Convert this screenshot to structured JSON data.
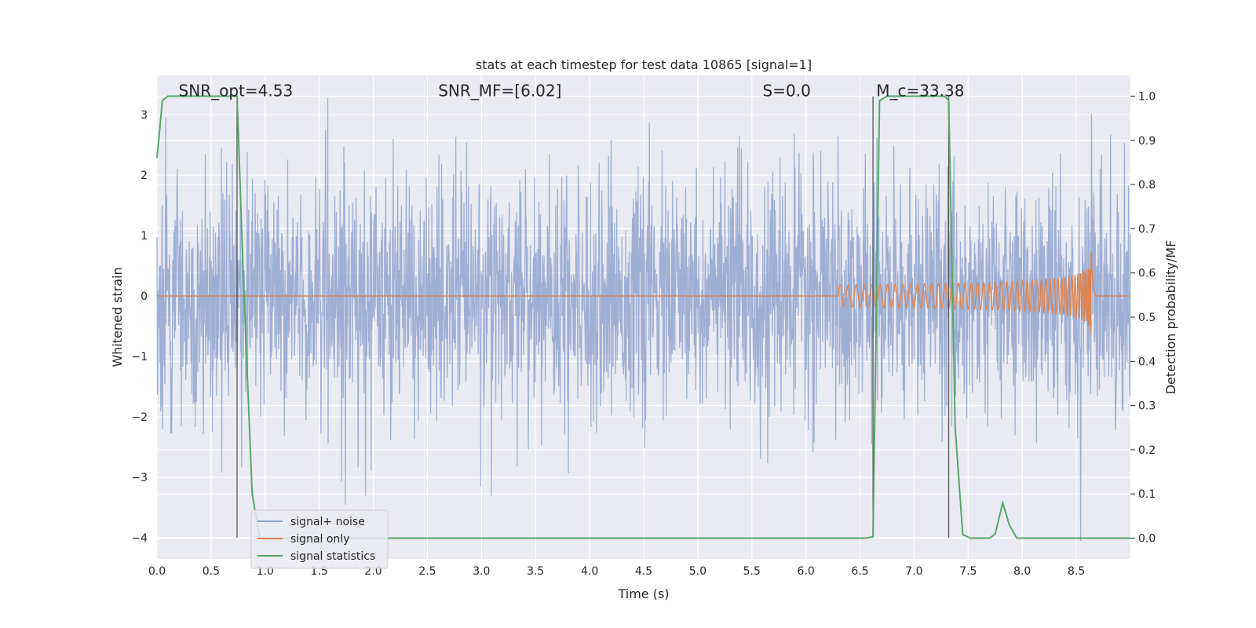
{
  "chart_data": {
    "type": "line",
    "title": "stats at each timestep for test data 10865 [signal=1]",
    "xlabel": "Time (s)",
    "ylabel": "Whitened strain",
    "y2label": "Detection probability/MF",
    "xlim": [
      0.0,
      9.0
    ],
    "ylim": [
      -4.35,
      3.65
    ],
    "y2lim": [
      -0.047,
      1.047
    ],
    "xticks": [
      "0.0",
      "0.5",
      "1.0",
      "1.5",
      "2.0",
      "2.5",
      "3.0",
      "3.5",
      "4.0",
      "4.5",
      "5.0",
      "5.5",
      "6.0",
      "6.5",
      "7.0",
      "7.5",
      "8.0",
      "8.5"
    ],
    "xtick_values": [
      0.0,
      0.5,
      1.0,
      1.5,
      2.0,
      2.5,
      3.0,
      3.5,
      4.0,
      4.5,
      5.0,
      5.5,
      6.0,
      6.5,
      7.0,
      7.5,
      8.0,
      8.5
    ],
    "yticks": [
      "−4",
      "−3",
      "−2",
      "−1",
      "0",
      "1",
      "2",
      "3"
    ],
    "ytick_values": [
      -4,
      -3,
      -2,
      -1,
      0,
      1,
      2,
      3
    ],
    "y2ticks": [
      "0.0",
      "0.1",
      "0.2",
      "0.3",
      "0.4",
      "0.5",
      "0.6",
      "0.7",
      "0.8",
      "0.9",
      "1.0"
    ],
    "y2tick_values": [
      0.0,
      0.1,
      0.2,
      0.3,
      0.4,
      0.5,
      0.6,
      0.7,
      0.8,
      0.9,
      1.0
    ],
    "grid": true,
    "legend_position": "bottom-left",
    "annotations": [
      {
        "text": "SNR_opt=4.53",
        "x": 0.2,
        "y": 3.4
      },
      {
        "text": "SNR_MF=[6.02]",
        "x": 2.6,
        "y": 3.4
      },
      {
        "text": "S=0.0",
        "x": 5.6,
        "y": 3.4
      },
      {
        "text": "M_c=33.38",
        "x": 6.65,
        "y": 3.4
      }
    ],
    "vlines": [
      0.74,
      6.62,
      7.32
    ],
    "series": [
      {
        "name": "signal+ noise",
        "color": "#8fa5cf",
        "axis": "left",
        "description_kind": "whitened noise",
        "amplitude_std": 0.95,
        "extremes": [
          {
            "x": 1.58,
            "y": 3.28
          },
          {
            "x": 1.74,
            "y": -3.45
          },
          {
            "x": 8.54,
            "y": -4.05
          },
          {
            "x": 8.64,
            "y": 3.02
          },
          {
            "x": 0.08,
            "y": 2.95
          }
        ]
      },
      {
        "name": "signal only",
        "color": "#dd8452",
        "axis": "left",
        "chirp": {
          "start": 6.3,
          "end": 8.64,
          "peak_amplitude": 0.9,
          "ringdown_end": 8.67
        }
      },
      {
        "name": "signal statistics",
        "color": "#55a868",
        "axis": "right",
        "x": [
          0.0,
          0.05,
          0.1,
          0.2,
          0.3,
          0.4,
          0.5,
          0.6,
          0.7,
          0.74,
          0.8,
          0.88,
          0.95,
          1.2,
          2.0,
          3.0,
          4.0,
          5.0,
          6.0,
          6.55,
          6.62,
          6.68,
          6.75,
          7.0,
          7.2,
          7.28,
          7.32,
          7.38,
          7.45,
          7.52,
          7.6,
          7.7,
          7.75,
          7.82,
          7.88,
          7.95,
          8.0,
          8.5,
          9.0
        ],
        "y": [
          0.86,
          0.99,
          1.0,
          1.0,
          1.0,
          1.0,
          1.0,
          1.0,
          1.0,
          1.0,
          0.58,
          0.1,
          0.0,
          0.0,
          0.0,
          0.0,
          0.0,
          0.0,
          0.0,
          0.0,
          0.003,
          0.99,
          1.0,
          1.0,
          1.0,
          1.0,
          0.99,
          0.25,
          0.008,
          0.0,
          0.0,
          0.0,
          0.01,
          0.08,
          0.03,
          0.0,
          0.0,
          0.0,
          0.0
        ]
      }
    ]
  }
}
